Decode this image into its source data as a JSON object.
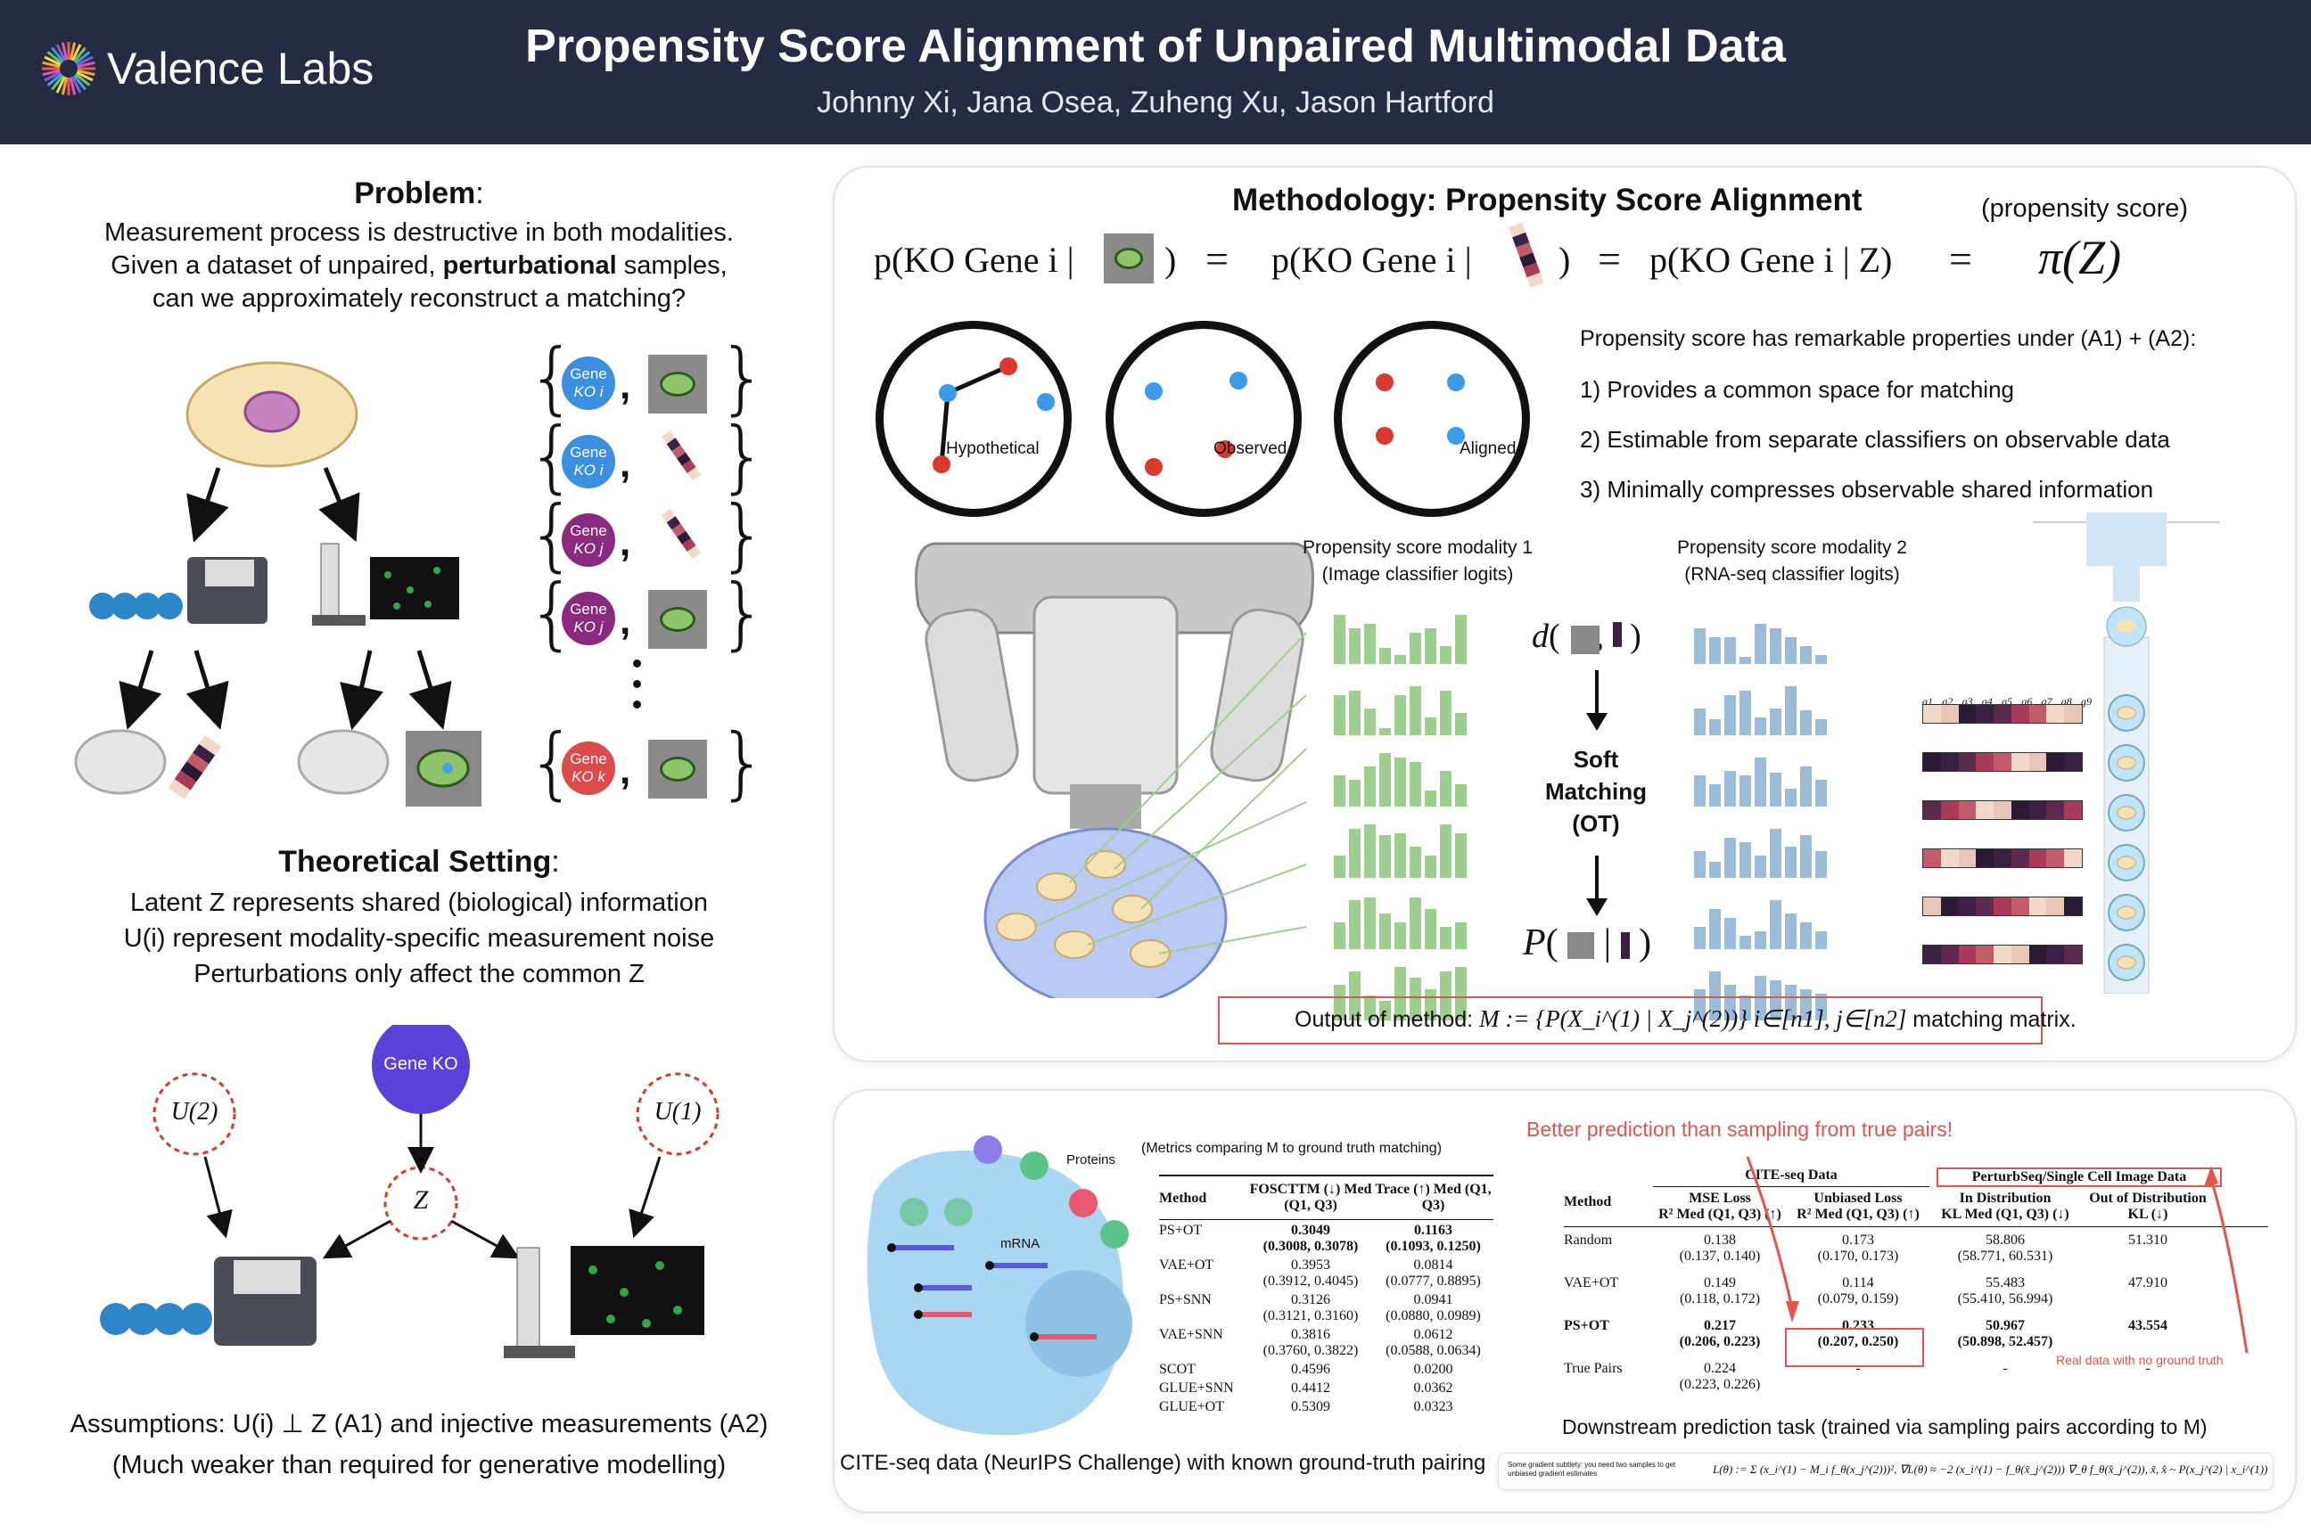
{
  "header": {
    "logo_text": "Valence Labs",
    "title": "Propensity Score Alignment of Unpaired Multimodal Data",
    "authors": "Johnny Xi, Jana Osea, Zuheng Xu, Jason Hartford"
  },
  "problem": {
    "heading": "Problem",
    "line1": "Measurement process is destructive in both modalities.",
    "line2_pre": "Given a dataset of unpaired, ",
    "line2_bold": "perturbational",
    "line2_post": " samples,",
    "line3": "can we approximately reconstruct a matching?",
    "badges": [
      {
        "line1": "Gene",
        "line2": "KO i",
        "color": "#3a8fe0"
      },
      {
        "line1": "Gene",
        "line2": "KO i",
        "color": "#3a8fe0"
      },
      {
        "line1": "Gene",
        "line2": "KO j",
        "color": "#8a2a7e"
      },
      {
        "line1": "Gene",
        "line2": "KO j",
        "color": "#8a2a7e"
      },
      {
        "line1": "Gene",
        "line2": "KO k",
        "color": "#dc4a4a"
      }
    ]
  },
  "theory": {
    "heading": "Theoretical Setting",
    "line1": "Latent Z represents shared (biological) information",
    "line2": "U(i) represent modality-specific measurement noise",
    "line3": "Perturbations only affect the common Z",
    "gene_ko": "Gene KO",
    "z": "Z",
    "u2": "U(2)",
    "u1": "U(1)",
    "assumptions": "Assumptions: U(i) ⊥ Z (A1) and injective measurements (A2)",
    "weaker": "(Much weaker than required for generative modelling)"
  },
  "methodology": {
    "heading": "Methodology: Propensity Score Alignment",
    "propensity_label": "(propensity score)",
    "eq1": "p(KO Gene i |",
    "eq2": "p(KO Gene i |",
    "eq3": "p(KO Gene i | Z)",
    "eq4": "π(Z)",
    "circle_labels": [
      "Hypothetical",
      "Observed",
      "Aligned"
    ],
    "props_title": "Propensity score has remarkable properties under (A1) + (A2):",
    "props": [
      "1)  Provides a common space for matching",
      "2)  Estimable from separate classifiers on observable data",
      "3)  Minimally compresses observable shared information"
    ],
    "mod1_line1": "Propensity score modality 1",
    "mod1_line2": "(Image classifier logits)",
    "mod2_line1": "Propensity score modality 2",
    "mod2_line2": "(RNA-seq classifier logits)",
    "soft": [
      "Soft",
      "Matching",
      "(OT)"
    ],
    "output_pre": "Output of method:",
    "output_formula": "M := {P(X_i^(1) | X_j^(2))} i∈[n1], j∈[n2]",
    "output_post": "matching matrix.",
    "gene_labels": [
      "g1",
      "g2",
      "g3",
      "g4",
      "g5",
      "g6",
      "g7",
      "g8",
      "g9"
    ]
  },
  "results": {
    "proteins": "Proteins",
    "mrna": "mRNA",
    "left_caption": "CITE-seq data (NeurIPS Challenge) with known ground-truth pairing",
    "metrics_title": "(Metrics comparing M to ground truth matching)",
    "left_table": {
      "headers": [
        "Method",
        "FOSCTTM (↓) Med (Q1, Q3)",
        "Trace (↑) Med (Q1, Q3)"
      ],
      "rows": [
        {
          "method": "PS+OT",
          "foscttm": "0.3049",
          "foscttm_q": "(0.3008, 0.3078)",
          "trace": "0.1163",
          "trace_q": "(0.1093, 0.1250)",
          "bold": true
        },
        {
          "method": "VAE+OT",
          "foscttm": "0.3953",
          "foscttm_q": "(0.3912, 0.4045)",
          "trace": "0.0814",
          "trace_q": "(0.0777, 0.8895)",
          "bold": false
        },
        {
          "method": "PS+SNN",
          "foscttm": "0.3126",
          "foscttm_q": "(0.3121, 0.3160)",
          "trace": "0.0941",
          "trace_q": "(0.0880, 0.0989)",
          "bold": false
        },
        {
          "method": "VAE+SNN",
          "foscttm": "0.3816",
          "foscttm_q": "(0.3760, 0.3822)",
          "trace": "0.0612",
          "trace_q": "(0.0588, 0.0634)",
          "bold": false
        },
        {
          "method": "SCOT",
          "foscttm": "0.4596",
          "foscttm_q": "",
          "trace": "0.0200",
          "trace_q": "",
          "bold": false
        },
        {
          "method": "GLUE+SNN",
          "foscttm": "0.4412",
          "foscttm_q": "",
          "trace": "0.0362",
          "trace_q": "",
          "bold": false
        },
        {
          "method": "GLUE+OT",
          "foscttm": "0.5309",
          "foscttm_q": "",
          "trace": "0.0323",
          "trace_q": "",
          "bold": false
        }
      ]
    },
    "better": "Better prediction than sampling from true pairs!",
    "right_table": {
      "group1": "CITE-seq Data",
      "group2": "PerturbSeq/Single Cell Image Data",
      "method": "Method",
      "col1": [
        "MSE Loss",
        "R² Med (Q1, Q3) (↑)"
      ],
      "col2": [
        "Unbiased Loss",
        "R² Med (Q1, Q3) (↑)"
      ],
      "col3": [
        "In Distribution",
        "KL Med (Q1, Q3) (↓)"
      ],
      "col4": [
        "Out of Distribution",
        "KL (↓)"
      ],
      "rows": [
        {
          "method": "Random",
          "c1": "0.138",
          "c1q": "(0.137, 0.140)",
          "c2": "0.173",
          "c2q": "(0.170, 0.173)",
          "c3": "58.806",
          "c3q": "(58.771, 60.531)",
          "c4": "51.310",
          "bold": false
        },
        {
          "method": "VAE+OT",
          "c1": "0.149",
          "c1q": "(0.118, 0.172)",
          "c2": "0.114",
          "c2q": "(0.079, 0.159)",
          "c3": "55.483",
          "c3q": "(55.410, 56.994)",
          "c4": "47.910",
          "bold": false
        },
        {
          "method": "PS+OT",
          "c1": "0.217",
          "c1q": "(0.206, 0.223)",
          "c2": "0.233",
          "c2q": "(0.207, 0.250)",
          "c3": "50.967",
          "c3q": "(50.898, 52.457)",
          "c4": "43.554",
          "bold": true
        },
        {
          "method": "True Pairs",
          "c1": "0.224",
          "c1q": "(0.223, 0.226)",
          "c2": "-",
          "c2q": "",
          "c3": "-",
          "c3q": "",
          "c4": "-",
          "bold": false
        }
      ]
    },
    "no_truth": "Real data with no ground truth",
    "downstream": "Downstream prediction task (trained via sampling pairs according to M)",
    "subtlety": "Some gradient subtlety: you need two samples to get unbiased gradient estimates",
    "formula": "L(θ) := Σ (x_i^(1) − M_i f_θ(x_j^(2)))²,   ∇L(θ) ≈ −2 (x_i^(1) − f_θ(x̃_j^(2))) ∇_θ f_θ(x̂_j^(2)),   x̃, x̂ ~ P(x_j^(2) | x_i^(1))"
  },
  "colors": {
    "header_bg": "#262b44",
    "red_accent": "#e5534b",
    "green_bars": "#9fcf8f",
    "blue_bars": "#9cbbd6",
    "gene_ko_node": "#5a3fd8"
  }
}
